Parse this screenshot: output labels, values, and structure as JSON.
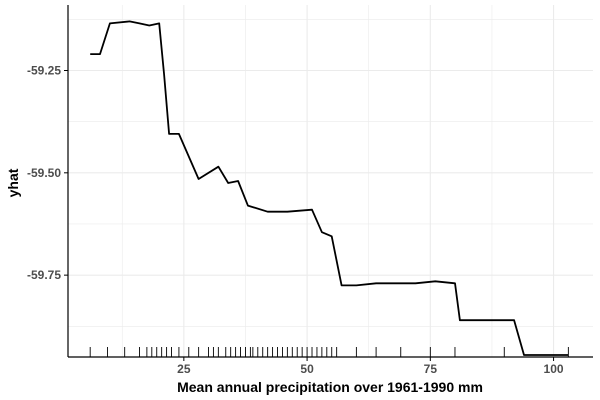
{
  "chart_data": {
    "type": "line",
    "title": "",
    "xlabel": "Mean annual precipitation over 1961-1990 mm",
    "ylabel": "yhat",
    "xlim": [
      1.5,
      108
    ],
    "ylim": [
      -59.95,
      -59.09
    ],
    "x_ticks": [
      25,
      50,
      75,
      100
    ],
    "x_tick_labels": [
      "25",
      "50",
      "75",
      "100"
    ],
    "y_ticks": [
      -59.25,
      -59.5,
      -59.75
    ],
    "y_tick_labels": [
      "-59.25",
      "-59.50",
      "-59.75"
    ],
    "grid": true,
    "legend": "none",
    "series": [
      {
        "x": [
          6,
          8,
          10,
          14,
          16,
          18,
          20,
          21,
          22,
          24,
          28,
          32,
          34,
          36,
          38,
          42,
          46,
          51,
          53,
          55,
          57,
          60,
          64,
          72,
          76,
          80,
          81,
          92,
          94,
          103
        ],
        "y": [
          -59.21,
          -59.21,
          -59.135,
          -59.13,
          -59.135,
          -59.14,
          -59.135,
          -59.26,
          -59.405,
          -59.405,
          -59.515,
          -59.485,
          -59.525,
          -59.52,
          -59.58,
          -59.595,
          -59.595,
          -59.59,
          -59.645,
          -59.655,
          -59.775,
          -59.775,
          -59.77,
          -59.77,
          -59.765,
          -59.77,
          -59.86,
          -59.86,
          -59.945,
          -59.945
        ]
      }
    ],
    "rug_x": [
      6,
      9.5,
      13,
      16,
      17.5,
      18.5,
      19.5,
      20.5,
      21.5,
      22.5,
      24,
      26,
      28,
      30,
      31,
      32,
      33.5,
      34.5,
      35.5,
      36.5,
      37.5,
      38.5,
      39,
      40,
      41,
      42,
      43,
      44,
      45,
      46,
      47,
      48,
      49,
      50,
      51,
      52,
      53,
      54,
      55,
      56,
      60,
      64,
      69,
      75,
      80,
      90,
      103
    ]
  },
  "colors": {
    "line": "#000000",
    "grid": "#ebebeb",
    "axis": "#000000",
    "tick_label": "#4d4d4d",
    "background": "#ffffff"
  }
}
